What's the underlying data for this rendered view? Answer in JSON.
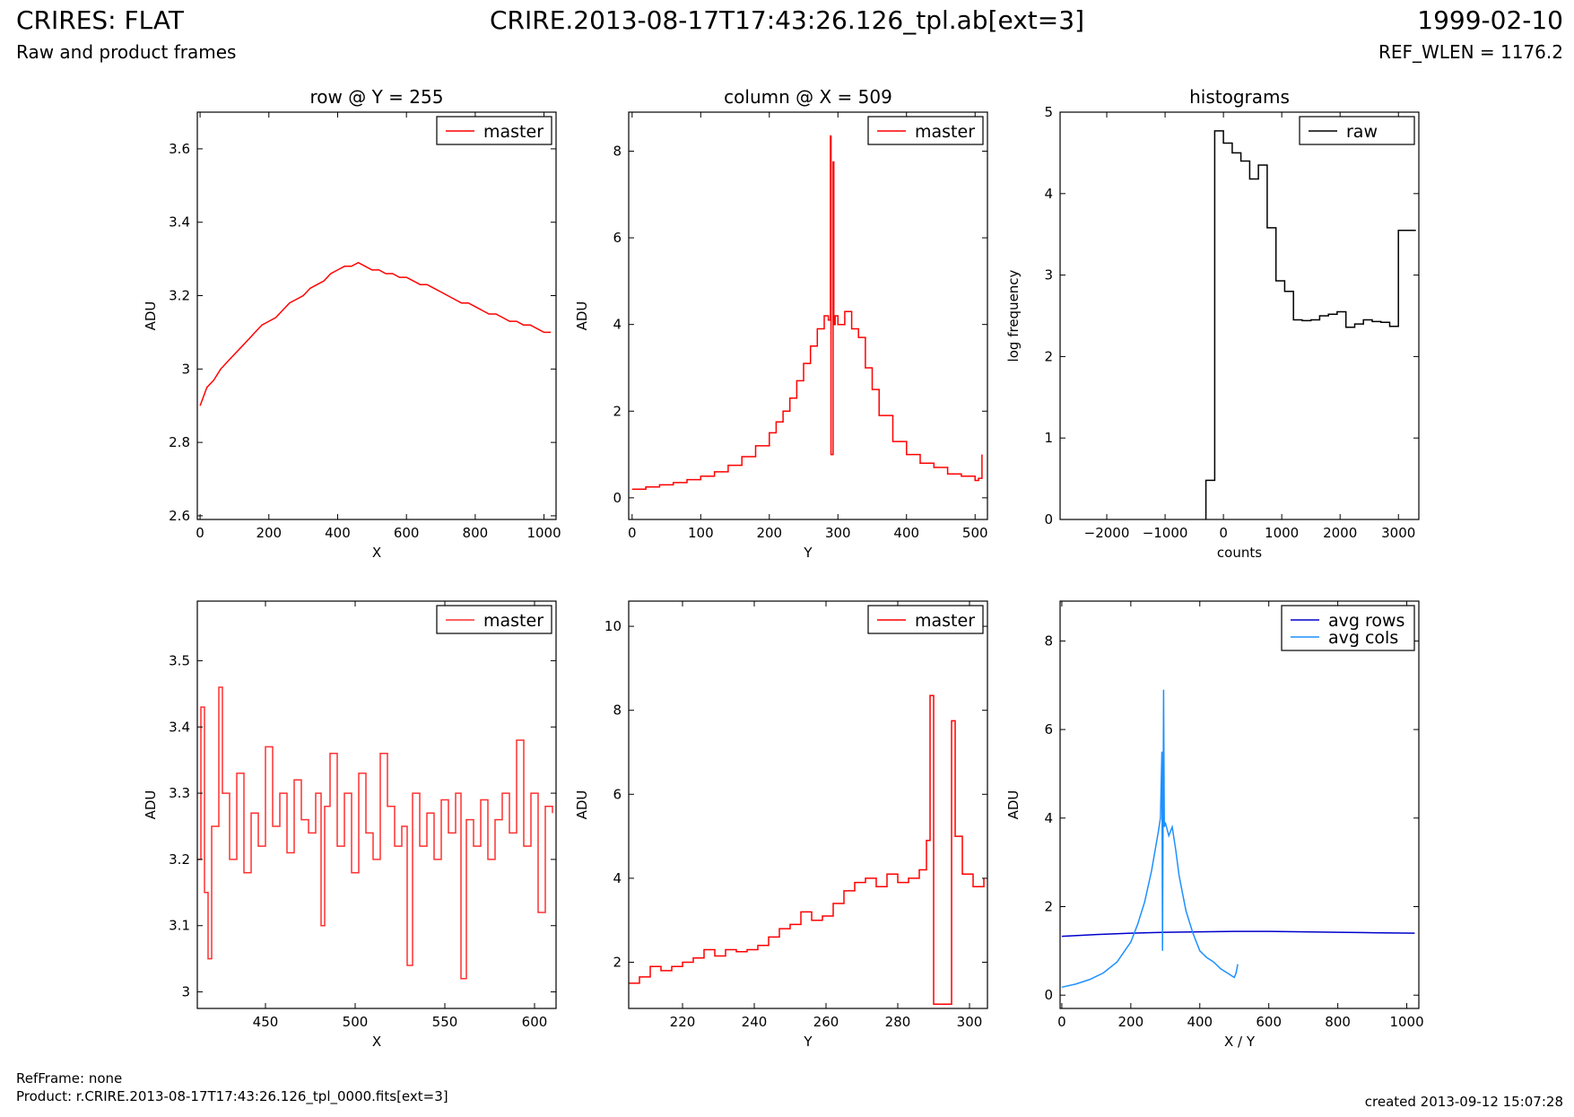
{
  "header": {
    "title": "CRIRES: FLAT",
    "subtitle": "Raw and product frames",
    "filename": "CRIRE.2013-08-17T17:43:26.126_tpl.ab[ext=3]",
    "date": "1999-02-10",
    "ref_wlen": "REF_WLEN = 1176.2"
  },
  "footer": {
    "ref_frame": "RefFrame: none",
    "product": "Product: r.CRIRE.2013-08-17T17:43:26.126_tpl_0000.fits[ext=3]",
    "created": "created 2013-09-12 15:07:28"
  },
  "colors": {
    "master": "#ff0000",
    "raw": "#000000",
    "avg_rows": "#0000cc",
    "avg_cols": "#1e90ff"
  },
  "chart_data": [
    {
      "id": "row-plot",
      "type": "line",
      "title": "row @ Y = 255",
      "xlabel": "X",
      "ylabel": "ADU",
      "xlim": [
        -8,
        1035
      ],
      "ylim": [
        2.59,
        3.7
      ],
      "xticks": [
        0,
        200,
        400,
        600,
        800,
        1000
      ],
      "yticks": [
        2.6,
        2.8,
        3.0,
        3.2,
        3.4,
        3.6
      ],
      "legend": "top-right",
      "series": [
        {
          "name": "master",
          "color": "#ff0000",
          "style": "line",
          "x": [
            0,
            20,
            40,
            60,
            80,
            100,
            120,
            140,
            160,
            180,
            200,
            220,
            240,
            260,
            280,
            300,
            320,
            340,
            360,
            380,
            400,
            420,
            440,
            460,
            480,
            500,
            520,
            540,
            560,
            580,
            600,
            620,
            640,
            660,
            680,
            700,
            720,
            740,
            760,
            780,
            800,
            820,
            840,
            860,
            880,
            900,
            920,
            940,
            960,
            980,
            1000,
            1020
          ],
          "y": [
            2.9,
            2.95,
            2.97,
            3.0,
            3.02,
            3.04,
            3.06,
            3.08,
            3.1,
            3.12,
            3.13,
            3.14,
            3.16,
            3.18,
            3.19,
            3.2,
            3.22,
            3.23,
            3.24,
            3.26,
            3.27,
            3.28,
            3.28,
            3.29,
            3.28,
            3.27,
            3.27,
            3.26,
            3.26,
            3.25,
            3.25,
            3.24,
            3.23,
            3.23,
            3.22,
            3.21,
            3.2,
            3.19,
            3.18,
            3.18,
            3.17,
            3.16,
            3.15,
            3.15,
            3.14,
            3.13,
            3.13,
            3.12,
            3.12,
            3.11,
            3.1,
            3.1
          ]
        }
      ]
    },
    {
      "id": "column-plot",
      "type": "line",
      "title": "column @ X = 509",
      "xlabel": "Y",
      "ylabel": "ADU",
      "xlim": [
        -5,
        518
      ],
      "ylim": [
        -0.5,
        8.9
      ],
      "xticks": [
        0,
        100,
        200,
        300,
        400,
        500
      ],
      "yticks": [
        0,
        2,
        4,
        6,
        8
      ],
      "legend": "top-right",
      "series": [
        {
          "name": "master",
          "color": "#ff0000",
          "style": "step",
          "x": [
            0,
            20,
            40,
            60,
            80,
            100,
            120,
            140,
            160,
            180,
            200,
            210,
            220,
            230,
            240,
            250,
            260,
            270,
            280,
            286,
            289,
            290,
            293,
            294,
            296,
            300,
            310,
            320,
            330,
            340,
            350,
            360,
            380,
            400,
            420,
            440,
            460,
            480,
            500,
            505,
            510
          ],
          "y": [
            0.2,
            0.25,
            0.3,
            0.35,
            0.42,
            0.5,
            0.6,
            0.75,
            0.95,
            1.2,
            1.5,
            1.75,
            2.0,
            2.3,
            2.7,
            3.1,
            3.5,
            3.9,
            4.2,
            4.1,
            8.35,
            1.0,
            7.75,
            4.0,
            4.2,
            4.0,
            4.3,
            3.9,
            3.7,
            3.0,
            2.5,
            1.9,
            1.3,
            1.0,
            0.8,
            0.7,
            0.55,
            0.5,
            0.4,
            0.45,
            1.0
          ]
        }
      ]
    },
    {
      "id": "histogram-plot",
      "type": "line",
      "title": "histograms",
      "xlabel": "counts",
      "ylabel": "log frequency",
      "xlim": [
        -2800,
        3350
      ],
      "ylim": [
        0,
        5
      ],
      "xticks": [
        -2000,
        -1000,
        0,
        1000,
        2000,
        3000
      ],
      "yticks": [
        0,
        1,
        2,
        3,
        4,
        5
      ],
      "legend": "top-right",
      "series": [
        {
          "name": "raw",
          "color": "#000000",
          "style": "hist",
          "edges": [
            -300,
            -150,
            0,
            150,
            300,
            450,
            600,
            750,
            900,
            1050,
            1200,
            1350,
            1500,
            1650,
            1800,
            1950,
            2100,
            2250,
            2400,
            2550,
            2700,
            2850,
            3000,
            3150,
            3300
          ],
          "y": [
            0.48,
            4.77,
            4.62,
            4.5,
            4.4,
            4.18,
            4.35,
            3.58,
            2.93,
            2.8,
            2.45,
            2.44,
            2.45,
            2.5,
            2.52,
            2.55,
            2.36,
            2.4,
            2.45,
            2.43,
            2.42,
            2.37,
            3.55,
            3.55
          ]
        }
      ]
    },
    {
      "id": "row-zoom-plot",
      "type": "line",
      "title": "",
      "xlabel": "X",
      "ylabel": "ADU",
      "xlim": [
        412,
        612
      ],
      "ylim": [
        2.975,
        3.59
      ],
      "xticks": [
        450,
        500,
        550,
        600
      ],
      "yticks": [
        3.0,
        3.1,
        3.2,
        3.3,
        3.4,
        3.5
      ],
      "legend": "top-right",
      "series": [
        {
          "name": "master",
          "color": "#ff3030",
          "style": "step",
          "x": [
            412,
            414,
            416,
            418,
            420,
            424,
            426,
            430,
            434,
            438,
            442,
            446,
            450,
            454,
            458,
            462,
            466,
            470,
            474,
            478,
            481,
            483,
            486,
            490,
            494,
            498,
            502,
            506,
            510,
            514,
            518,
            522,
            526,
            529,
            532,
            536,
            540,
            544,
            548,
            552,
            556,
            559,
            562,
            566,
            570,
            574,
            578,
            582,
            586,
            590,
            594,
            598,
            602,
            606,
            610
          ],
          "y": [
            3.2,
            3.43,
            3.15,
            3.05,
            3.25,
            3.46,
            3.3,
            3.2,
            3.33,
            3.18,
            3.27,
            3.22,
            3.37,
            3.25,
            3.3,
            3.21,
            3.32,
            3.26,
            3.24,
            3.3,
            3.1,
            3.28,
            3.36,
            3.22,
            3.3,
            3.18,
            3.33,
            3.24,
            3.2,
            3.36,
            3.28,
            3.22,
            3.25,
            3.04,
            3.3,
            3.22,
            3.27,
            3.2,
            3.29,
            3.24,
            3.3,
            3.02,
            3.26,
            3.22,
            3.29,
            3.2,
            3.26,
            3.3,
            3.24,
            3.38,
            3.22,
            3.3,
            3.12,
            3.28,
            3.27
          ]
        }
      ]
    },
    {
      "id": "column-zoom-plot",
      "type": "line",
      "title": "",
      "xlabel": "Y",
      "ylabel": "ADU",
      "xlim": [
        205,
        305
      ],
      "ylim": [
        0.9,
        10.6
      ],
      "xticks": [
        220,
        240,
        260,
        280,
        300
      ],
      "yticks": [
        2,
        4,
        6,
        8,
        10
      ],
      "legend": "top-right",
      "series": [
        {
          "name": "master",
          "color": "#ff0000",
          "style": "step",
          "x": [
            205,
            208,
            211,
            214,
            217,
            220,
            223,
            226,
            229,
            232,
            235,
            238,
            241,
            244,
            247,
            250,
            253,
            256,
            259,
            262,
            265,
            268,
            271,
            274,
            277,
            280,
            283,
            286,
            288,
            289,
            290,
            293,
            294,
            295,
            296,
            298,
            301,
            304
          ],
          "y": [
            1.5,
            1.65,
            1.9,
            1.8,
            1.9,
            2.0,
            2.1,
            2.3,
            2.15,
            2.3,
            2.25,
            2.3,
            2.4,
            2.6,
            2.8,
            2.9,
            3.2,
            3.0,
            3.1,
            3.4,
            3.7,
            3.9,
            4.0,
            3.8,
            4.1,
            3.9,
            4.0,
            4.2,
            4.9,
            8.35,
            1.0,
            1.0,
            1.0,
            7.75,
            5.0,
            4.1,
            3.8,
            4.0
          ]
        }
      ]
    },
    {
      "id": "averages-plot",
      "type": "line",
      "title": "",
      "xlabel": "X / Y",
      "ylabel": "ADU",
      "xlim": [
        -5,
        1035
      ],
      "ylim": [
        -0.3,
        8.9
      ],
      "xticks": [
        0,
        200,
        400,
        600,
        800,
        1000
      ],
      "yticks": [
        0,
        2,
        4,
        6,
        8
      ],
      "legend": "top-right",
      "series": [
        {
          "name": "avg rows",
          "color": "#0000cc",
          "style": "line",
          "x": [
            0,
            100,
            200,
            300,
            400,
            500,
            600,
            700,
            800,
            900,
            1023
          ],
          "y": [
            1.33,
            1.37,
            1.4,
            1.42,
            1.43,
            1.44,
            1.44,
            1.43,
            1.42,
            1.41,
            1.4
          ]
        },
        {
          "name": "avg cols",
          "color": "#1e90ff",
          "style": "line",
          "x": [
            0,
            40,
            80,
            120,
            160,
            200,
            220,
            240,
            260,
            280,
            286,
            290,
            292,
            295,
            297,
            300,
            310,
            320,
            330,
            340,
            350,
            360,
            380,
            400,
            420,
            440,
            460,
            480,
            500,
            505,
            510
          ],
          "y": [
            0.18,
            0.25,
            0.35,
            0.5,
            0.75,
            1.2,
            1.6,
            2.1,
            2.8,
            3.7,
            4.0,
            5.5,
            1.0,
            6.9,
            3.8,
            3.9,
            3.6,
            3.8,
            3.3,
            2.7,
            2.3,
            1.9,
            1.4,
            1.0,
            0.85,
            0.75,
            0.6,
            0.5,
            0.4,
            0.5,
            0.7
          ]
        }
      ]
    }
  ]
}
